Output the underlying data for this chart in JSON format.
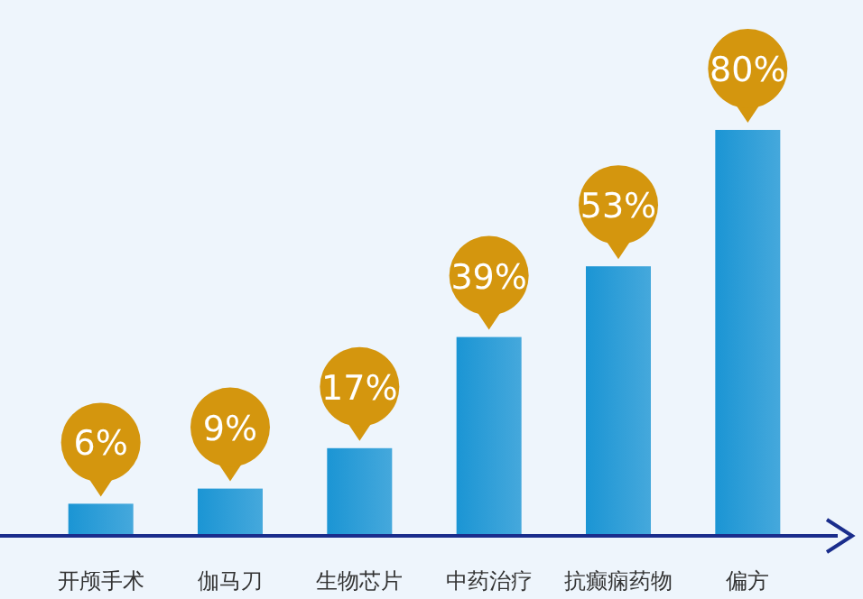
{
  "chart_data": {
    "type": "bar",
    "categories": [
      "开颅手术",
      "伽马刀",
      "生物芯片",
      "中药治疗",
      "抗癫痫药物",
      "偏方"
    ],
    "values": [
      6,
      9,
      17,
      39,
      53,
      80
    ],
    "value_labels": [
      "6%",
      "9%",
      "17%",
      "39%",
      "53%",
      "80%"
    ],
    "color": "#1b95d4"
  }
}
